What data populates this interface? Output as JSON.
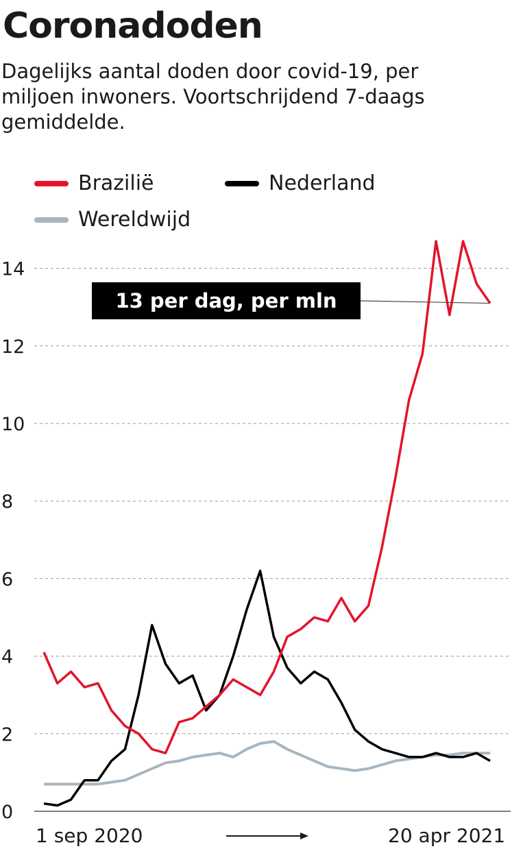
{
  "title": "Coronadoden",
  "subtitle": "Dagelijks aantal doden door covid-19, per miljoen inwoners. Voortschrijdend 7-daags gemiddelde.",
  "annotation": "13 per dag, per mln",
  "colors": {
    "brazil": "#e3142a",
    "netherlands": "#000000",
    "world": "#a8b6c0",
    "grid": "#9a9a9a"
  },
  "chart_data": {
    "type": "line",
    "title": "Coronadoden",
    "x_start_label": "1 sep 2020",
    "x_end_label": "20 apr 2021",
    "x": [
      "2020-09-01",
      "2020-09-08",
      "2020-09-15",
      "2020-09-22",
      "2020-09-29",
      "2020-10-06",
      "2020-10-13",
      "2020-10-20",
      "2020-10-27",
      "2020-11-03",
      "2020-11-10",
      "2020-11-17",
      "2020-11-24",
      "2020-12-01",
      "2020-12-08",
      "2020-12-15",
      "2020-12-22",
      "2020-12-29",
      "2021-01-05",
      "2021-01-12",
      "2021-01-19",
      "2021-01-26",
      "2021-02-02",
      "2021-02-09",
      "2021-02-16",
      "2021-02-23",
      "2021-03-02",
      "2021-03-09",
      "2021-03-16",
      "2021-03-23",
      "2021-03-30",
      "2021-04-06",
      "2021-04-13",
      "2021-04-20"
    ],
    "ylim": [
      0,
      14.8
    ],
    "yticks": [
      0,
      2,
      4,
      6,
      8,
      10,
      12,
      14
    ],
    "legend": "top-left",
    "grid": true,
    "series": [
      {
        "name": "Brazilië",
        "color": "#e3142a",
        "values": [
          4.1,
          3.3,
          3.6,
          3.2,
          3.3,
          2.6,
          2.2,
          2.0,
          1.6,
          1.5,
          2.3,
          2.4,
          2.7,
          3.0,
          3.4,
          3.2,
          3.0,
          3.6,
          4.5,
          4.7,
          5.0,
          4.9,
          5.5,
          4.9,
          5.3,
          6.8,
          8.6,
          10.6,
          11.8,
          14.7,
          12.8,
          14.7,
          13.6,
          13.1
        ]
      },
      {
        "name": "Nederland",
        "color": "#000000",
        "values": [
          0.2,
          0.15,
          0.3,
          0.8,
          0.8,
          1.3,
          1.6,
          3.0,
          4.8,
          3.8,
          3.3,
          3.5,
          2.6,
          3.0,
          4.0,
          5.2,
          6.2,
          4.5,
          3.7,
          3.3,
          3.6,
          3.4,
          2.8,
          2.1,
          1.8,
          1.6,
          1.5,
          1.4,
          1.4,
          1.5,
          1.4,
          1.4,
          1.5,
          1.3
        ]
      },
      {
        "name": "Wereldwijd",
        "color": "#a8b6c0",
        "values": [
          0.7,
          0.7,
          0.7,
          0.7,
          0.7,
          0.75,
          0.8,
          0.95,
          1.1,
          1.25,
          1.3,
          1.4,
          1.45,
          1.5,
          1.4,
          1.6,
          1.75,
          1.8,
          1.6,
          1.45,
          1.3,
          1.15,
          1.1,
          1.05,
          1.1,
          1.2,
          1.3,
          1.35,
          1.4,
          1.45,
          1.45,
          1.5,
          1.5,
          1.5
        ]
      }
    ]
  }
}
